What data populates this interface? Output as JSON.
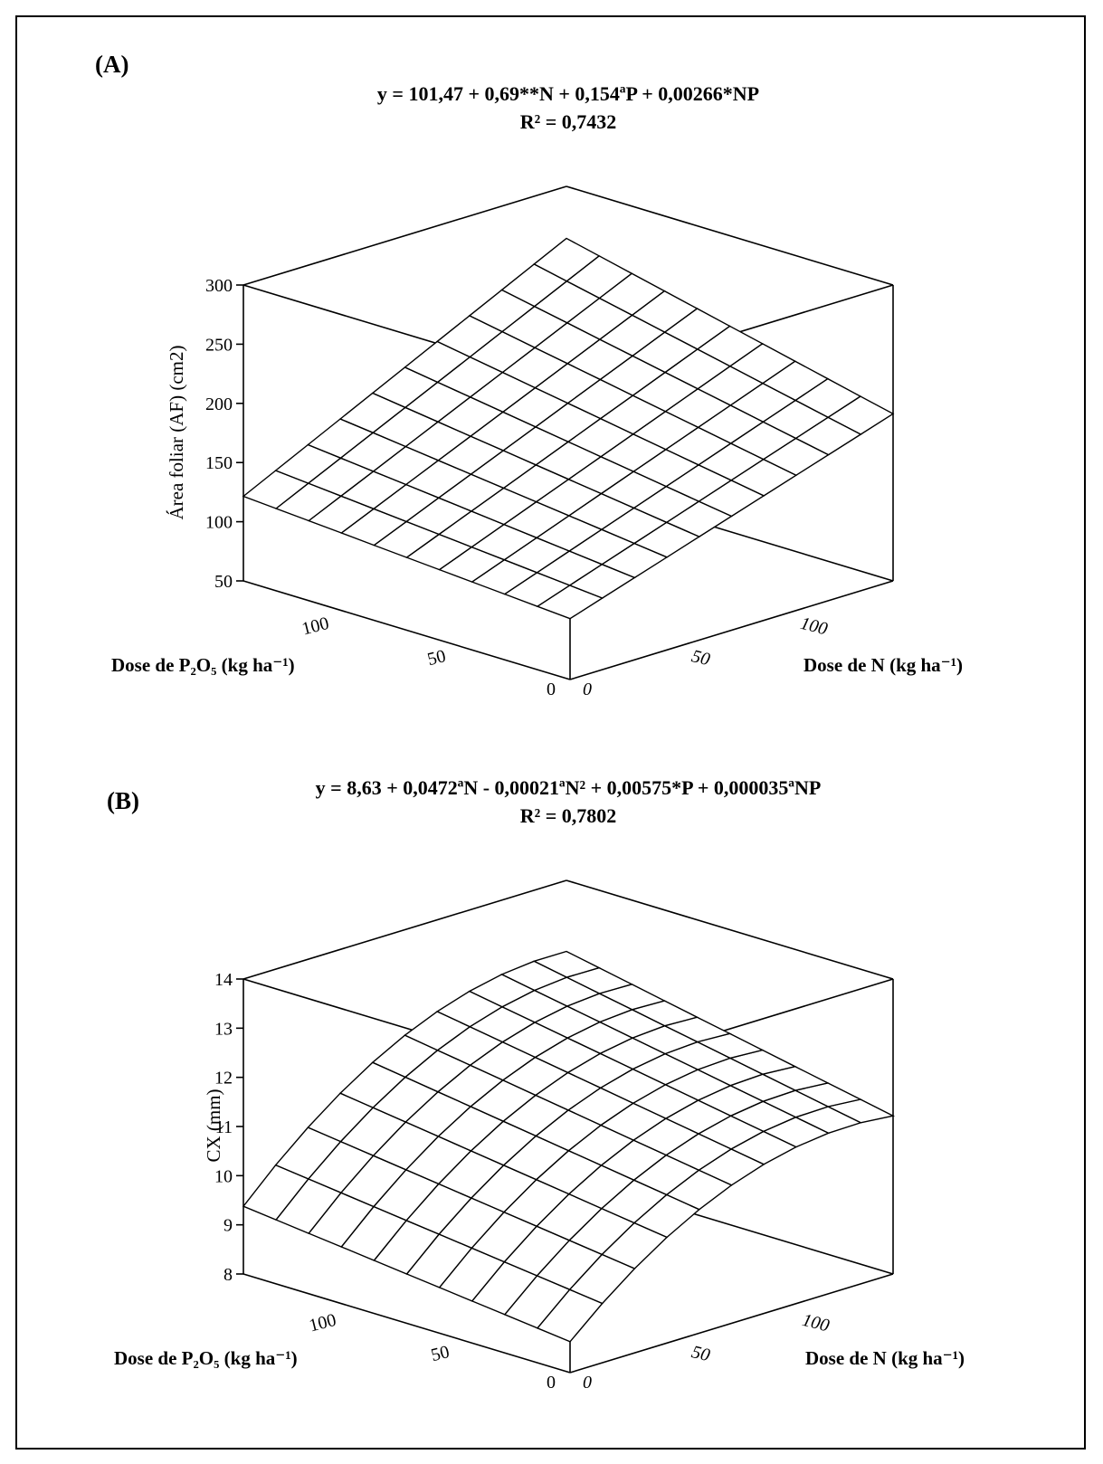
{
  "chart_data": [
    {
      "type": "surface",
      "panel": "(A)",
      "equation": "y = 101,47 + 0,69**N + 0,154ªP + 0,00266*NP",
      "r2": "R² = 0,7432",
      "zlabel": "Área foliar (AF) (cm2)",
      "xlabel": "Dose de N (kg ha⁻¹)",
      "ylabel": "Dose de P₂O₅ (kg ha⁻¹)",
      "zlim": [
        50,
        300
      ],
      "xlim": [
        0,
        130
      ],
      "ylim": [
        0,
        130
      ],
      "z_ticks": [
        "50",
        "100",
        "150",
        "200",
        "250",
        "300"
      ],
      "n_ticks": [
        "0",
        "50",
        "100"
      ],
      "p_ticks": [
        "0",
        "50",
        "100"
      ],
      "coefficients": {
        "b0": 101.47,
        "bN": 0.69,
        "bN2": 0,
        "bP": 0.154,
        "bNP": 0.00266
      },
      "grid_steps": 10
    },
    {
      "type": "surface",
      "panel": "(B)",
      "equation": "y = 8,63 + 0,0472ªN - 0,00021ªN² + 0,00575*P + 0,000035ªNP",
      "r2": "R² = 0,7802",
      "zlabel": "CX (mm)",
      "xlabel": "Dose de N (kg ha⁻¹)",
      "ylabel": "Dose de P₂O₅ (kg ha⁻¹)",
      "zlim": [
        8,
        14
      ],
      "xlim": [
        0,
        130
      ],
      "ylim": [
        0,
        130
      ],
      "z_ticks": [
        "8",
        "9",
        "10",
        "11",
        "12",
        "13",
        "14"
      ],
      "n_ticks": [
        "0",
        "50",
        "100"
      ],
      "p_ticks": [
        "0",
        "50",
        "100"
      ],
      "coefficients": {
        "b0": 8.63,
        "bN": 0.0472,
        "bN2": -0.00021,
        "bP": 0.00575,
        "bNP": 3.5e-05
      },
      "grid_steps": 10
    }
  ]
}
